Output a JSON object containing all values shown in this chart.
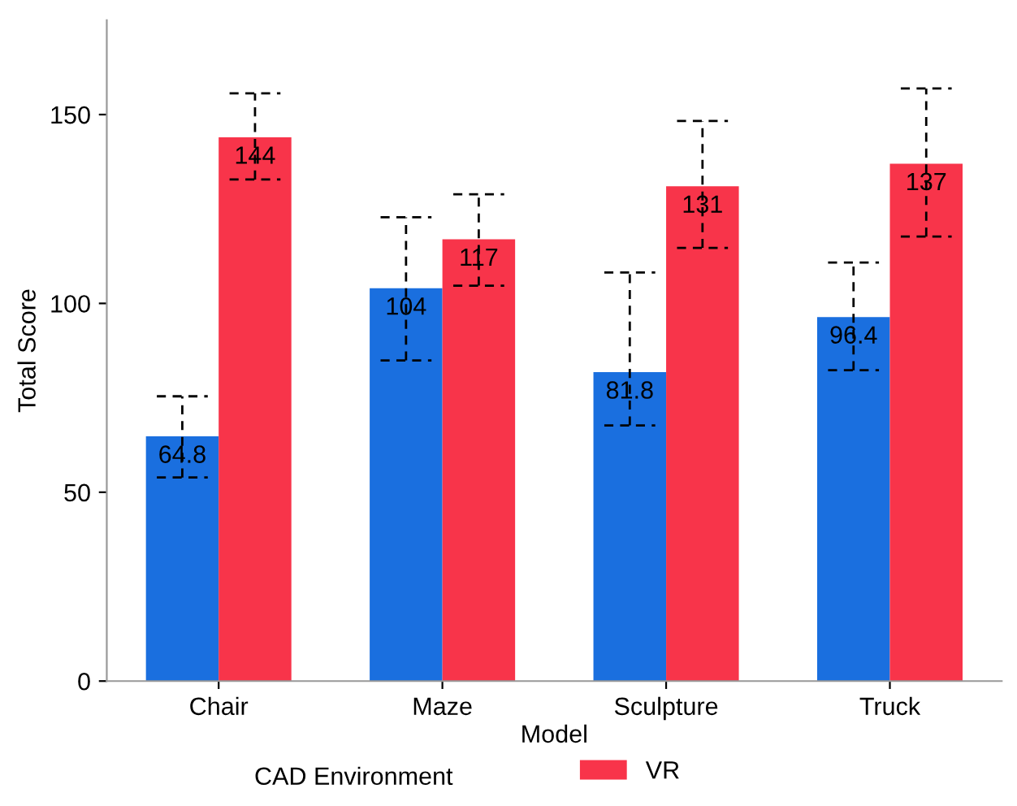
{
  "chart_data": {
    "type": "bar",
    "xlabel": "Model",
    "ylabel": "Total Score",
    "legend_title": "CAD Environment",
    "categories": [
      "Chair",
      "Maze",
      "Sculpture",
      "Truck"
    ],
    "series": [
      {
        "color": "#1a6fdf",
        "values": [
          64.8,
          104,
          81.8,
          96.4
        ],
        "errors": [
          [
            53.9,
            75.4
          ],
          [
            84.9,
            122.8
          ],
          [
            67.7,
            108.2
          ],
          [
            82.3,
            110.8
          ]
        ]
      },
      {
        "name": "VR",
        "color": "#f8344a",
        "values": [
          144,
          117,
          131,
          137
        ],
        "errors": [
          [
            132.8,
            155.6
          ],
          [
            104.7,
            128.9
          ],
          [
            114.7,
            148.3
          ],
          [
            117.7,
            156.9
          ]
        ]
      }
    ],
    "ylim": [
      0,
      175
    ],
    "yticks": [
      0,
      50,
      100,
      150
    ],
    "data_labels": true,
    "legend": "bottom",
    "grid": false
  }
}
